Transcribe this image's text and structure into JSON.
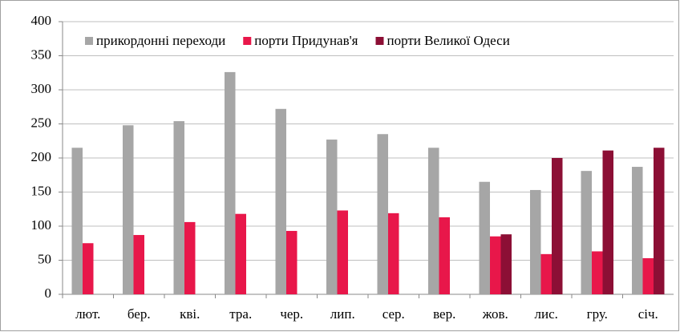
{
  "chart_data": {
    "type": "bar",
    "categories": [
      "лют.",
      "бер.",
      "кві.",
      "тра.",
      "чер.",
      "лип.",
      "сер.",
      "вер.",
      "жов.",
      "лис.",
      "гру.",
      "січ."
    ],
    "series": [
      {
        "name": "прикордонні переходи",
        "color": "#a6a6a6",
        "values": [
          215,
          248,
          254,
          326,
          272,
          227,
          235,
          215,
          165,
          153,
          181,
          187
        ]
      },
      {
        "name": "порти Придунав'я",
        "color": "#e8174a",
        "values": [
          75,
          87,
          106,
          118,
          93,
          123,
          119,
          113,
          85,
          59,
          63,
          53
        ]
      },
      {
        "name": "порти Великої Одеси",
        "color": "#8c0f35",
        "values": [
          null,
          null,
          null,
          null,
          null,
          null,
          null,
          null,
          88,
          200,
          211,
          215
        ]
      }
    ],
    "ylim": [
      0,
      400
    ],
    "yticks": [
      0,
      50,
      100,
      150,
      200,
      250,
      300,
      350,
      400
    ],
    "grid": true,
    "legend": "top"
  }
}
